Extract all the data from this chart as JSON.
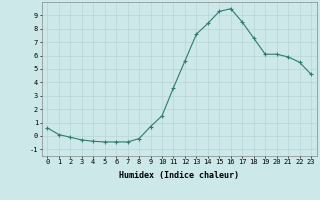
{
  "x": [
    0,
    1,
    2,
    3,
    4,
    5,
    6,
    7,
    8,
    9,
    10,
    11,
    12,
    13,
    14,
    15,
    16,
    17,
    18,
    19,
    20,
    21,
    22,
    23
  ],
  "y": [
    0.6,
    0.1,
    -0.1,
    -0.3,
    -0.4,
    -0.45,
    -0.45,
    -0.45,
    -0.2,
    0.7,
    1.5,
    3.6,
    5.6,
    7.6,
    8.4,
    9.3,
    9.5,
    8.5,
    7.3,
    6.1,
    6.1,
    5.9,
    5.5,
    4.6
  ],
  "line_color": "#2e7d6e",
  "marker": "+",
  "marker_size": 3,
  "bg_color": "#cce8e8",
  "grid_color": "#b8d4d4",
  "xlabel": "Humidex (Indice chaleur)",
  "ylim": [
    -1.5,
    10.0
  ],
  "xlim": [
    -0.5,
    23.5
  ],
  "yticks": [
    -1,
    0,
    1,
    2,
    3,
    4,
    5,
    6,
    7,
    8,
    9
  ],
  "xticks": [
    0,
    1,
    2,
    3,
    4,
    5,
    6,
    7,
    8,
    9,
    10,
    11,
    12,
    13,
    14,
    15,
    16,
    17,
    18,
    19,
    20,
    21,
    22,
    23
  ],
  "xtick_labels": [
    "0",
    "1",
    "2",
    "3",
    "4",
    "5",
    "6",
    "7",
    "8",
    "9",
    "10",
    "11",
    "12",
    "13",
    "14",
    "15",
    "16",
    "17",
    "18",
    "19",
    "20",
    "21",
    "22",
    "23"
  ],
  "axis_fontsize": 5.5,
  "tick_fontsize": 5.0,
  "xlabel_fontsize": 6.0
}
